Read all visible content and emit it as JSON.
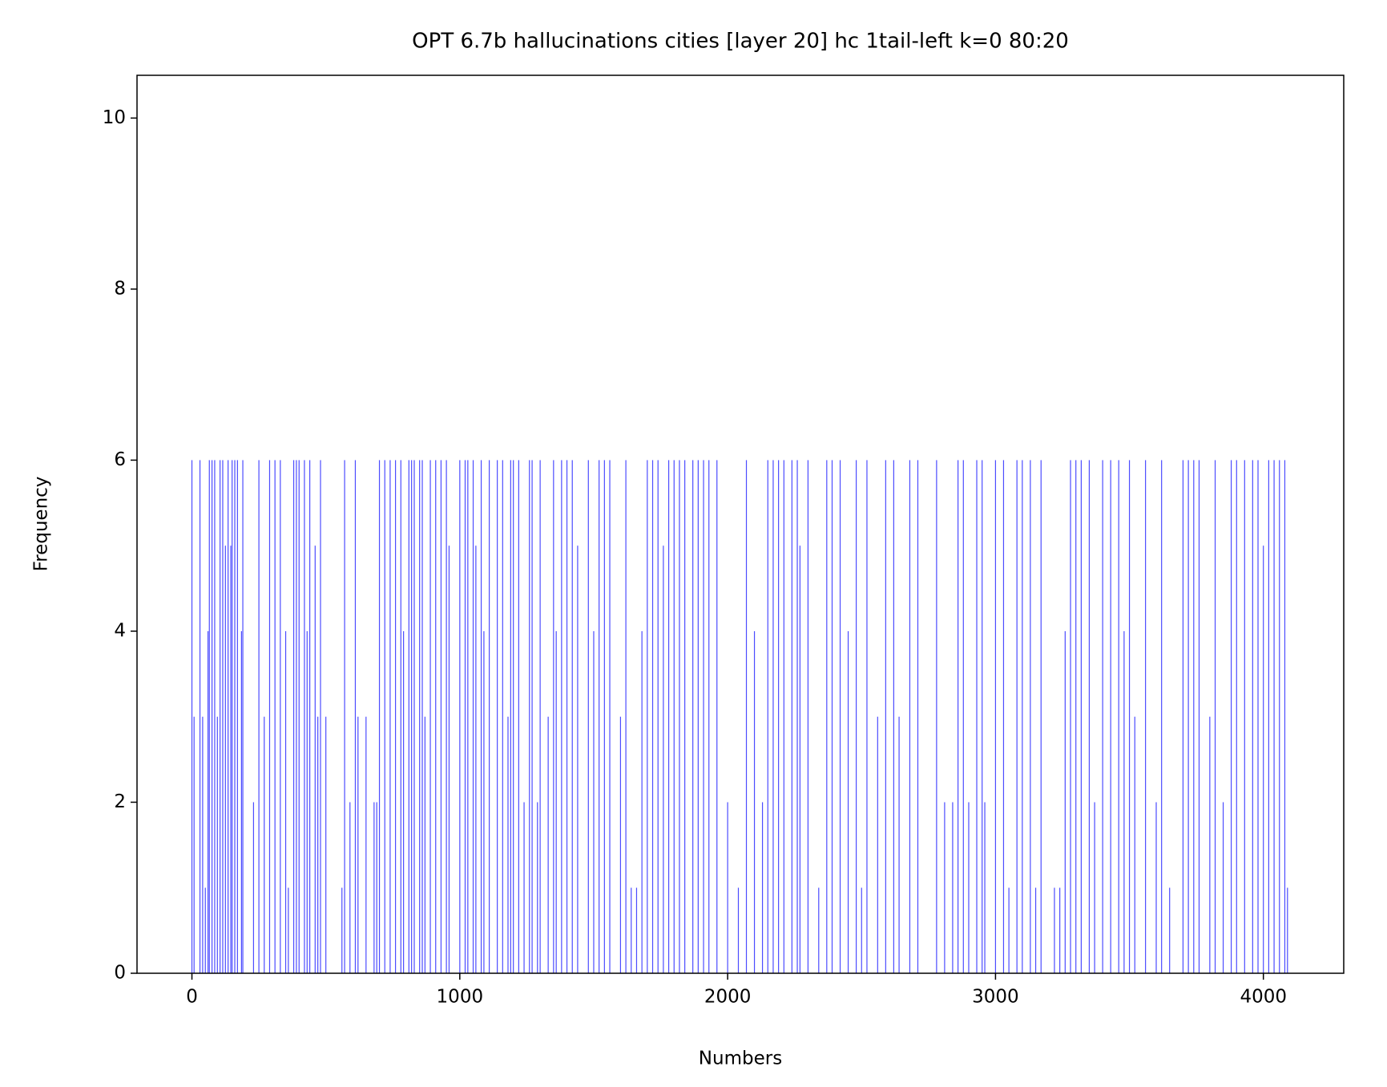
{
  "chart_data": {
    "type": "bar",
    "title": "OPT 6.7b hallucinations cities [layer 20] hc 1tail-left k=0 80:20",
    "x_label": "Numbers",
    "y_label": "Frequency",
    "color": "#0000ff",
    "x": [
      0,
      8,
      30,
      40,
      50,
      60,
      65,
      75,
      85,
      95,
      105,
      115,
      125,
      135,
      145,
      150,
      160,
      170,
      185,
      190,
      230,
      250,
      270,
      290,
      310,
      330,
      350,
      360,
      380,
      390,
      400,
      420,
      430,
      440,
      460,
      470,
      480,
      500,
      560,
      570,
      590,
      610,
      620,
      650,
      680,
      690,
      700,
      720,
      740,
      760,
      780,
      790,
      810,
      820,
      830,
      850,
      860,
      870,
      890,
      910,
      930,
      950,
      960,
      1000,
      1020,
      1030,
      1050,
      1060,
      1080,
      1090,
      1110,
      1140,
      1160,
      1180,
      1190,
      1200,
      1220,
      1240,
      1260,
      1270,
      1290,
      1300,
      1330,
      1350,
      1360,
      1380,
      1400,
      1420,
      1440,
      1480,
      1500,
      1520,
      1540,
      1560,
      1600,
      1620,
      1640,
      1660,
      1680,
      1700,
      1720,
      1740,
      1760,
      1780,
      1800,
      1820,
      1840,
      1870,
      1890,
      1910,
      1930,
      1960,
      2000,
      2040,
      2070,
      2100,
      2130,
      2150,
      2170,
      2190,
      2210,
      2240,
      2260,
      2270,
      2300,
      2340,
      2370,
      2390,
      2420,
      2450,
      2480,
      2500,
      2520,
      2560,
      2590,
      2620,
      2640,
      2680,
      2710,
      2780,
      2810,
      2840,
      2860,
      2880,
      2900,
      2930,
      2950,
      2960,
      3000,
      3030,
      3050,
      3080,
      3100,
      3130,
      3150,
      3170,
      3220,
      3240,
      3260,
      3280,
      3300,
      3320,
      3350,
      3370,
      3400,
      3430,
      3460,
      3480,
      3500,
      3520,
      3560,
      3600,
      3620,
      3650,
      3700,
      3720,
      3740,
      3760,
      3800,
      3820,
      3850,
      3880,
      3900,
      3930,
      3960,
      3980,
      4000,
      4020,
      4040,
      4060,
      4080,
      4090
    ],
    "values": [
      6,
      3,
      6,
      3,
      1,
      4,
      6,
      6,
      6,
      3,
      6,
      6,
      5,
      6,
      5,
      6,
      6,
      6,
      4,
      6,
      2,
      6,
      3,
      6,
      6,
      6,
      4,
      1,
      6,
      6,
      6,
      6,
      4,
      6,
      5,
      3,
      6,
      3,
      1,
      6,
      2,
      6,
      3,
      3,
      2,
      2,
      6,
      6,
      6,
      6,
      6,
      4,
      6,
      6,
      6,
      6,
      6,
      3,
      6,
      6,
      6,
      6,
      5,
      6,
      6,
      6,
      6,
      5,
      6,
      4,
      6,
      6,
      6,
      3,
      6,
      6,
      6,
      2,
      6,
      6,
      2,
      6,
      3,
      6,
      4,
      6,
      6,
      6,
      5,
      6,
      4,
      6,
      6,
      6,
      3,
      6,
      1,
      1,
      4,
      6,
      6,
      6,
      5,
      6,
      6,
      6,
      6,
      6,
      6,
      6,
      6,
      6,
      2,
      1,
      6,
      4,
      2,
      6,
      6,
      6,
      6,
      6,
      6,
      5,
      6,
      1,
      6,
      6,
      6,
      4,
      6,
      1,
      6,
      3,
      6,
      6,
      3,
      6,
      6,
      6,
      2,
      2,
      6,
      6,
      2,
      6,
      6,
      2,
      6,
      6,
      1,
      6,
      6,
      6,
      1,
      6,
      1,
      1,
      4,
      6,
      6,
      6,
      6,
      2,
      6,
      6,
      6,
      4,
      6,
      3,
      6,
      2,
      6,
      1,
      6,
      6,
      6,
      6,
      3,
      6,
      2,
      6,
      6,
      6,
      6,
      6,
      5,
      6,
      6,
      6,
      6,
      1
    ],
    "xlim": [
      -205,
      4300
    ],
    "ylim": [
      0,
      10.5
    ],
    "xticks": [
      0,
      1000,
      2000,
      3000,
      4000
    ],
    "yticks": [
      0,
      2,
      4,
      6,
      8,
      10
    ]
  }
}
